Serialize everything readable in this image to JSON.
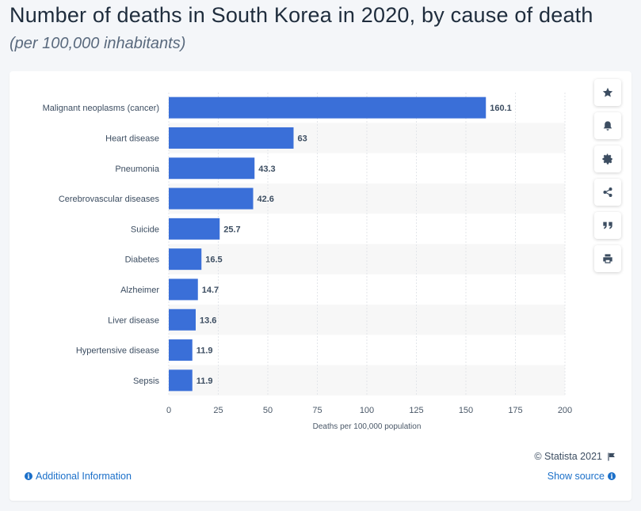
{
  "header": {
    "title": "Number of deaths in South Korea in 2020, by cause of death",
    "subtitle": "(per 100,000 inhabitants)"
  },
  "footer": {
    "copyright": "© Statista 2021",
    "additional_info": "Additional Information",
    "show_source": "Show source"
  },
  "toolbar": [
    {
      "name": "star-icon"
    },
    {
      "name": "bell-icon"
    },
    {
      "name": "gear-icon"
    },
    {
      "name": "share-icon"
    },
    {
      "name": "quote-icon"
    },
    {
      "name": "print-icon"
    }
  ],
  "colors": {
    "bar": "#3a6fd8",
    "band": "#f7f7f7",
    "grid": "#e3e6ea",
    "link": "#1a6fc9"
  },
  "chart_data": {
    "type": "bar",
    "orientation": "horizontal",
    "categories": [
      "Malignant neoplasms (cancer)",
      "Heart disease",
      "Pneumonia",
      "Cerebrovascular diseases",
      "Suicide",
      "Diabetes",
      "Alzheimer",
      "Liver disease",
      "Hypertensive disease",
      "Sepsis"
    ],
    "values": [
      160.1,
      63,
      43.3,
      42.6,
      25.7,
      16.5,
      14.7,
      13.6,
      11.9,
      11.9
    ],
    "value_labels": [
      "160.1",
      "63",
      "43.3",
      "42.6",
      "25.7",
      "16.5",
      "14.7",
      "13.6",
      "11.9",
      "11.9"
    ],
    "xlabel": "Deaths per 100,000 population",
    "xlim": [
      0,
      200
    ],
    "xticks": [
      0,
      25,
      50,
      75,
      100,
      125,
      150,
      175,
      200
    ],
    "grid": true
  }
}
